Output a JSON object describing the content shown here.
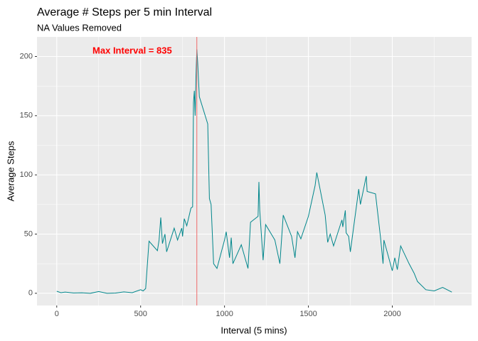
{
  "chart_data": {
    "type": "line",
    "title": "Average # Steps per 5 min Interval",
    "subtitle": "NA Values Removed",
    "x_label": "Interval (5 mins)",
    "y_label": "Average Steps",
    "annotation": "Max Interval = 835",
    "vline": 835,
    "vline_color": "#f06b6b",
    "x": [
      0,
      25,
      50,
      100,
      150,
      200,
      250,
      300,
      350,
      400,
      450,
      500,
      515,
      530,
      550,
      600,
      610,
      620,
      630,
      645,
      655,
      700,
      720,
      745,
      750,
      760,
      775,
      800,
      810,
      815,
      820,
      825,
      830,
      835,
      840,
      845,
      850,
      900,
      910,
      920,
      935,
      955,
      1000,
      1010,
      1030,
      1040,
      1050,
      1100,
      1140,
      1155,
      1200,
      1205,
      1210,
      1230,
      1245,
      1300,
      1330,
      1350,
      1400,
      1420,
      1435,
      1455,
      1500,
      1540,
      1550,
      1600,
      1615,
      1630,
      1650,
      1700,
      1705,
      1720,
      1725,
      1740,
      1750,
      1800,
      1810,
      1845,
      1850,
      1900,
      1930,
      1945,
      1950,
      2000,
      2015,
      2030,
      2050,
      2100,
      2130,
      2150,
      2200,
      2250,
      2300,
      2355
    ],
    "series": [
      {
        "name": "Average Steps",
        "color": "#00868b",
        "values": [
          1.7,
          0.5,
          1,
          0.3,
          0.4,
          0,
          1.5,
          0,
          0.2,
          1.2,
          0.5,
          3,
          2,
          4,
          44,
          36,
          45,
          64,
          42,
          50,
          35,
          55,
          45,
          55,
          48,
          63,
          57,
          72,
          73,
          161,
          171,
          150,
          184,
          206,
          195,
          180,
          166,
          143,
          80,
          75,
          25,
          21,
          45,
          52,
          30,
          47,
          25,
          41,
          21,
          60,
          65,
          94,
          70,
          28,
          58,
          45,
          25,
          66,
          48,
          30,
          52,
          46,
          65,
          91,
          102,
          66,
          43,
          50,
          40,
          62,
          56,
          70,
          51,
          48,
          35,
          88,
          75,
          99,
          86,
          84,
          47,
          25,
          45,
          19,
          30,
          20,
          40,
          25,
          17,
          10,
          3,
          2,
          5,
          1
        ]
      }
    ],
    "xlim": [
      -117.75,
      2472.75
    ],
    "ylim": [
      -10.3,
      216.5
    ],
    "xticks": [
      0,
      500,
      1000,
      1500,
      2000
    ],
    "yticks": [
      0,
      50,
      100,
      150,
      200
    ],
    "x_minor_grid": [
      250,
      750,
      1250,
      1750,
      2250
    ],
    "y_minor_grid": [
      25,
      75,
      125,
      175
    ],
    "grid": true,
    "panel_color": "#ebebeb"
  }
}
